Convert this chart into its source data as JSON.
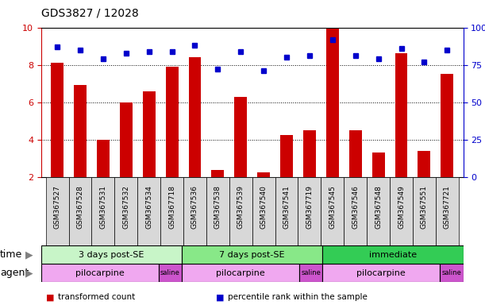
{
  "title": "GDS3827 / 12028",
  "samples": [
    "GSM367527",
    "GSM367528",
    "GSM367531",
    "GSM367532",
    "GSM367534",
    "GSM367718",
    "GSM367536",
    "GSM367538",
    "GSM367539",
    "GSM367540",
    "GSM367541",
    "GSM367719",
    "GSM367545",
    "GSM367546",
    "GSM367548",
    "GSM367549",
    "GSM367551",
    "GSM367721"
  ],
  "transformed_count": [
    8.1,
    6.9,
    4.0,
    6.0,
    6.6,
    7.9,
    8.4,
    2.35,
    6.3,
    2.25,
    4.25,
    4.5,
    9.95,
    4.5,
    3.3,
    8.6,
    3.4,
    7.5
  ],
  "percentile_rank": [
    87,
    85,
    79,
    83,
    84,
    84,
    88,
    72,
    84,
    71,
    80,
    81,
    92,
    81,
    79,
    86,
    77,
    85
  ],
  "ylim_left": [
    2,
    10
  ],
  "ylim_right": [
    0,
    100
  ],
  "yticks_left": [
    2,
    4,
    6,
    8,
    10
  ],
  "yticks_right": [
    0,
    25,
    50,
    75,
    100
  ],
  "bar_color": "#cc0000",
  "dot_color": "#0000cc",
  "bar_bottom": 2,
  "time_groups": [
    {
      "label": "3 days post-SE",
      "start": 0,
      "end": 5,
      "color": "#c8f5c8"
    },
    {
      "label": "7 days post-SE",
      "start": 6,
      "end": 11,
      "color": "#88e888"
    },
    {
      "label": "immediate",
      "start": 12,
      "end": 17,
      "color": "#33cc55"
    }
  ],
  "agent_groups": [
    {
      "label": "pilocarpine",
      "start": 0,
      "end": 4,
      "color": "#f0a8f0"
    },
    {
      "label": "saline",
      "start": 5,
      "end": 5,
      "color": "#cc55cc"
    },
    {
      "label": "pilocarpine",
      "start": 6,
      "end": 10,
      "color": "#f0a8f0"
    },
    {
      "label": "saline",
      "start": 11,
      "end": 11,
      "color": "#cc55cc"
    },
    {
      "label": "pilocarpine",
      "start": 12,
      "end": 16,
      "color": "#f0a8f0"
    },
    {
      "label": "saline",
      "start": 17,
      "end": 17,
      "color": "#cc55cc"
    }
  ],
  "legend_items": [
    {
      "label": "transformed count",
      "color": "#cc0000"
    },
    {
      "label": "percentile rank within the sample",
      "color": "#0000cc"
    }
  ],
  "axis_color_left": "#cc0000",
  "axis_color_right": "#0000cc",
  "bg_color": "#ffffff",
  "xlabel_bg": "#d8d8d8",
  "grid_yticks": [
    4,
    6,
    8
  ]
}
